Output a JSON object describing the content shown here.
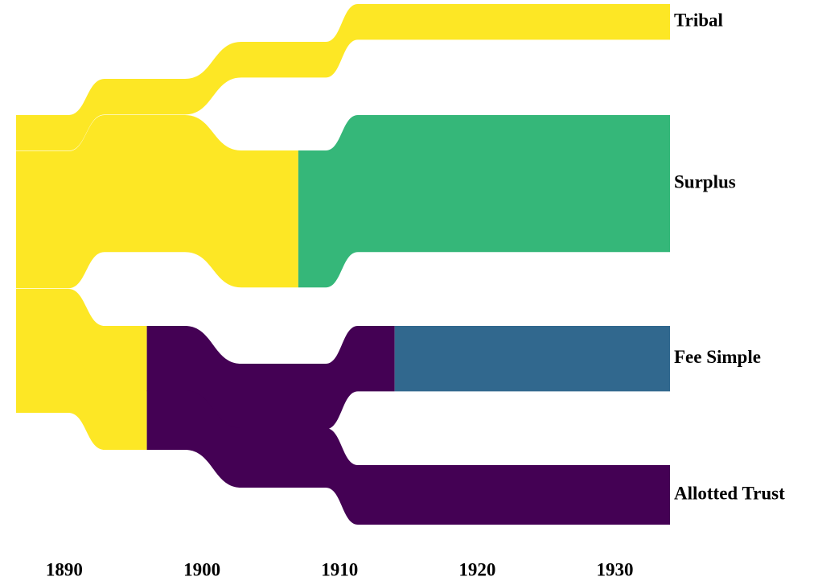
{
  "chart_data": {
    "type": "alluvial",
    "xlim": [
      1886.5,
      1934
    ],
    "xticks": [
      1890,
      1900,
      1910,
      1920,
      1930
    ],
    "series": [
      {
        "name": "Tribal",
        "color": "#fde725",
        "value": 12,
        "start_state": 0,
        "changes": []
      },
      {
        "name": "Surplus",
        "color": "#35b779",
        "value": 46,
        "start_state": 0,
        "changes": [
          {
            "year": 1907,
            "state": 1
          }
        ]
      },
      {
        "name": "Fee Simple",
        "color": "#31688e",
        "value": 22,
        "start_state": 0,
        "changes": [
          {
            "year": 1896,
            "state": 3
          },
          {
            "year": 1914,
            "state": 2
          }
        ]
      },
      {
        "name": "Allotted Trust",
        "color": "#440154",
        "value": 20,
        "start_state": 0,
        "changes": [
          {
            "year": 1896,
            "state": 3
          }
        ]
      }
    ]
  }
}
